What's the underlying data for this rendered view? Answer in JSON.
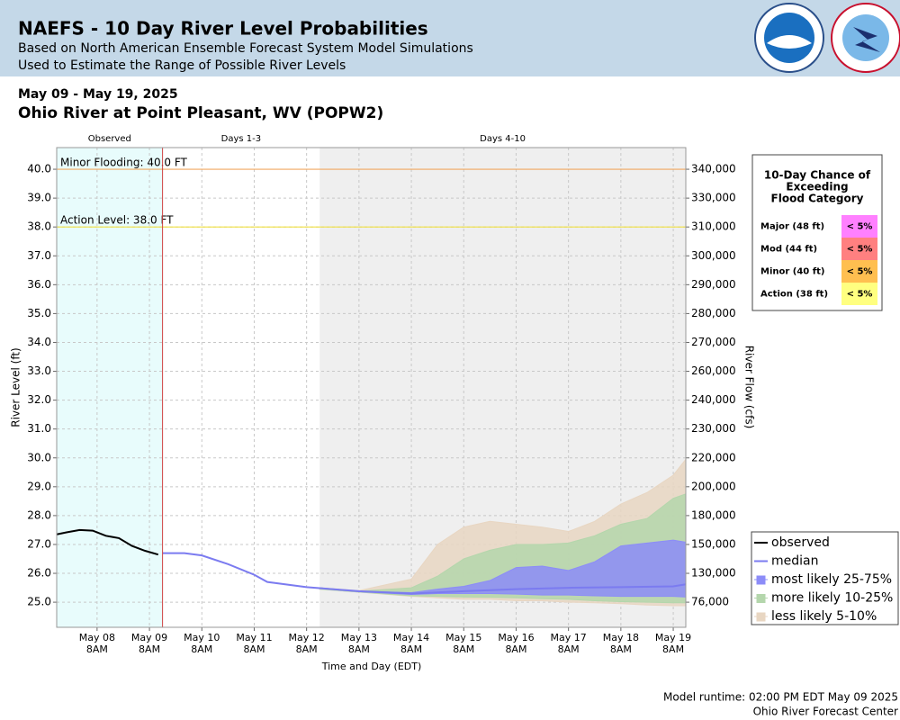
{
  "header": {
    "title": "NAEFS - 10 Day River Level Probabilities",
    "subtitle_lines": [
      "Based on North American Ensemble Forecast System Model Simulations",
      "Used to Estimate the Range of Possible River Levels"
    ]
  },
  "date_range": "May 09 - May 19, 2025",
  "station": "Ohio River at Point Pleasant, WV (POPW2)",
  "chart_data": {
    "type": "probability-band",
    "ylabel": "River Level (ft)",
    "y2label": "River Flow (cfs)",
    "xlabel": "Time and Day (EDT)",
    "xlim": [
      "2025-05-07T13:30",
      "2025-05-19T13:45"
    ],
    "ylim": [
      24.13,
      40.75
    ],
    "yticks": [
      {
        "value": 25,
        "label": "25.0"
      },
      {
        "value": 26,
        "label": "26.0"
      },
      {
        "value": 27,
        "label": "27.0"
      },
      {
        "value": 28,
        "label": "28.0"
      },
      {
        "value": 29,
        "label": "29.0"
      },
      {
        "value": 30,
        "label": "30.0"
      },
      {
        "value": 31,
        "label": "31.0"
      },
      {
        "value": 32,
        "label": "32.0"
      },
      {
        "value": 33,
        "label": "33.0"
      },
      {
        "value": 34,
        "label": "34.0"
      },
      {
        "value": 35,
        "label": "35.0"
      },
      {
        "value": 36,
        "label": "36.0"
      },
      {
        "value": 37,
        "label": "37.0"
      },
      {
        "value": 38,
        "label": "38.0"
      },
      {
        "value": 39,
        "label": "39.0"
      },
      {
        "value": 40,
        "label": "40.0"
      }
    ],
    "y2ticks": [
      {
        "value": 76000,
        "label": "76,000"
      },
      {
        "value": 130000,
        "label": "130,000"
      },
      {
        "value": 150000,
        "label": "150,000"
      },
      {
        "value": 180000,
        "label": "180,000"
      },
      {
        "value": 200000,
        "label": "200,000"
      },
      {
        "value": 220000,
        "label": "220,000"
      },
      {
        "value": 230000,
        "label": "230,000"
      },
      {
        "value": 240000,
        "label": "240,000"
      },
      {
        "value": 260000,
        "label": "260,000"
      },
      {
        "value": 270000,
        "label": "270,000"
      },
      {
        "value": 280000,
        "label": "280,000"
      },
      {
        "value": 290000,
        "label": "290,000"
      },
      {
        "value": 300000,
        "label": "300,000"
      },
      {
        "value": 310000,
        "label": "310,000"
      },
      {
        "value": 330000,
        "label": "330,000"
      },
      {
        "value": 340000,
        "label": "340,000"
      }
    ],
    "xticks": [
      {
        "value": "2025-05-08T08:00",
        "label": "May 08",
        "sublabel": "8AM"
      },
      {
        "value": "2025-05-09T08:00",
        "label": "May 09",
        "sublabel": "8AM"
      },
      {
        "value": "2025-05-10T08:00",
        "label": "May 10",
        "sublabel": "8AM"
      },
      {
        "value": "2025-05-11T08:00",
        "label": "May 11",
        "sublabel": "8AM"
      },
      {
        "value": "2025-05-12T08:00",
        "label": "May 12",
        "sublabel": "8AM"
      },
      {
        "value": "2025-05-13T08:00",
        "label": "May 13",
        "sublabel": "8AM"
      },
      {
        "value": "2025-05-14T08:00",
        "label": "May 14",
        "sublabel": "8AM"
      },
      {
        "value": "2025-05-15T08:00",
        "label": "May 15",
        "sublabel": "8AM"
      },
      {
        "value": "2025-05-16T08:00",
        "label": "May 16",
        "sublabel": "8AM"
      },
      {
        "value": "2025-05-17T08:00",
        "label": "May 17",
        "sublabel": "8AM"
      },
      {
        "value": "2025-05-18T08:00",
        "label": "May 18",
        "sublabel": "8AM"
      },
      {
        "value": "2025-05-19T08:00",
        "label": "May 19",
        "sublabel": "8AM"
      }
    ],
    "grid": true,
    "regions": [
      {
        "label": "Observed",
        "start": "2025-05-07T13:30",
        "end": "2025-05-09T14:00",
        "color": "#e8fcfc"
      },
      {
        "label": "Days 1-3",
        "start": "2025-05-09T14:00",
        "end": "2025-05-12T14:00",
        "color": "#ffffff"
      },
      {
        "label": "Days 4-10",
        "start": "2025-05-12T14:00",
        "end": "2025-05-19T13:45",
        "color": "#efefef"
      }
    ],
    "forecast_start": "2025-05-09T14:00",
    "thresholds": [
      {
        "label": "Minor Flooding: 40.0 FT",
        "value": 40,
        "color": "#f0a860"
      },
      {
        "label": "Action Level: 38.0 FT",
        "value": 38,
        "color": "#f0e040"
      }
    ],
    "series": [
      {
        "name": "observed",
        "color": "#000000",
        "x": [
          "2025-05-07T13:30",
          "2025-05-07T18:00",
          "2025-05-08T00:00",
          "2025-05-08T06:00",
          "2025-05-08T12:00",
          "2025-05-08T18:00",
          "2025-05-09T00:00",
          "2025-05-09T06:00",
          "2025-05-09T12:00"
        ],
        "values": [
          27.35,
          27.42,
          27.5,
          27.48,
          27.3,
          27.22,
          26.95,
          26.78,
          26.65
        ]
      },
      {
        "name": "median",
        "color": "#7b7bf0",
        "x": [
          "2025-05-09T14:00",
          "2025-05-10T00:00",
          "2025-05-10T08:00",
          "2025-05-10T20:00",
          "2025-05-11T08:00",
          "2025-05-11T14:00",
          "2025-05-12T08:00",
          "2025-05-13T08:00",
          "2025-05-14T08:00",
          "2025-05-15T08:00",
          "2025-05-16T08:00",
          "2025-05-17T08:00",
          "2025-05-18T08:00",
          "2025-05-19T08:00",
          "2025-05-19T13:45"
        ],
        "values": [
          26.7,
          26.7,
          26.62,
          26.32,
          25.95,
          25.7,
          25.52,
          25.38,
          25.3,
          25.38,
          25.45,
          25.5,
          25.52,
          25.55,
          25.62
        ]
      },
      {
        "name": "most likely 25-75%",
        "color": "#8c8cf8",
        "upper": [
          25.5,
          25.38,
          25.33,
          25.45,
          25.55,
          25.75,
          26.2,
          26.25,
          26.1,
          26.4,
          26.95,
          27.05,
          27.15,
          27.08
        ],
        "lower": [
          25.48,
          25.36,
          25.27,
          25.3,
          25.3,
          25.3,
          25.28,
          25.25,
          25.25,
          25.22,
          25.2,
          25.2,
          25.2,
          25.18
        ]
      },
      {
        "name": "more likely 10-25%",
        "color": "#b4d6ac",
        "upper": [
          25.5,
          25.38,
          25.5,
          25.9,
          26.5,
          26.8,
          27.0,
          27.0,
          27.05,
          27.3,
          27.7,
          27.9,
          28.6,
          28.75
        ],
        "lower": [
          25.45,
          25.35,
          25.22,
          25.2,
          25.18,
          25.17,
          25.15,
          25.12,
          25.1,
          25.05,
          25.02,
          25.0,
          24.98,
          24.98
        ]
      },
      {
        "name": "less likely 5-10%",
        "color": "#e8d6c2",
        "upper": [
          25.5,
          25.4,
          25.8,
          27.0,
          27.6,
          27.8,
          27.7,
          27.6,
          27.45,
          27.8,
          28.4,
          28.8,
          29.4,
          29.95
        ],
        "lower": [
          25.45,
          25.35,
          25.2,
          25.15,
          25.1,
          25.1,
          25.05,
          25.05,
          25.0,
          24.98,
          24.95,
          24.9,
          24.88,
          24.88
        ]
      }
    ],
    "band_x": [
      "2025-05-12T14:00",
      "2025-05-13T08:00",
      "2025-05-14T08:00",
      "2025-05-14T20:00",
      "2025-05-15T08:00",
      "2025-05-15T20:00",
      "2025-05-16T08:00",
      "2025-05-16T20:00",
      "2025-05-17T08:00",
      "2025-05-17T20:00",
      "2025-05-18T08:00",
      "2025-05-18T20:00",
      "2025-05-19T08:00",
      "2025-05-19T13:45"
    ],
    "legend": "bottom-right",
    "flood_category_table": {
      "title_lines": [
        "10-Day Chance of",
        "Exceeding",
        "Flood Category"
      ],
      "rows": [
        {
          "label": "Major (48 ft)",
          "chance": "< 5%",
          "color": "#ff80ff"
        },
        {
          "label": "Mod (44 ft)",
          "chance": "< 5%",
          "color": "#ff8080"
        },
        {
          "label": "Minor (40 ft)",
          "chance": "< 5%",
          "color": "#ffbf50"
        },
        {
          "label": "Action (38 ft)",
          "chance": "< 5%",
          "color": "#ffff80"
        }
      ]
    }
  },
  "footer": {
    "runtime": "Model runtime: 02:00 PM EDT May 09 2025",
    "center": "Ohio River Forecast Center"
  }
}
